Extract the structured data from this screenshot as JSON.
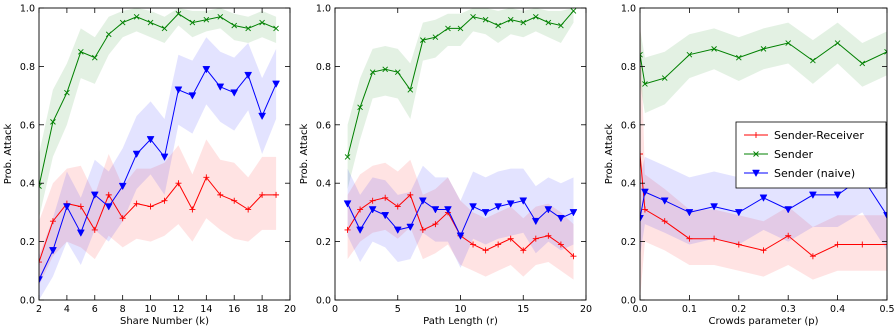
{
  "chart_data": [
    {
      "type": "line",
      "xlabel": "Share Number (k)",
      "ylabel": "Prob. Attack",
      "xlim": [
        2,
        20
      ],
      "ylim": [
        0,
        1
      ],
      "xticks": [
        2,
        4,
        6,
        8,
        10,
        12,
        14,
        16,
        18,
        20
      ],
      "yticks": [
        0.0,
        0.2,
        0.4,
        0.6,
        0.8,
        1.0
      ],
      "xtick_labels": [
        "2",
        "4",
        "6",
        "8",
        "10",
        "12",
        "14",
        "16",
        "18",
        "20"
      ],
      "ytick_labels": [
        "0.0",
        "0.2",
        "0.4",
        "0.6",
        "0.8",
        "1.0"
      ],
      "x": [
        2,
        3,
        4,
        5,
        6,
        7,
        8,
        9,
        10,
        11,
        12,
        13,
        14,
        15,
        16,
        17,
        18,
        19
      ],
      "series": [
        {
          "color": "#ff0000",
          "marker": "plus",
          "values": [
            0.13,
            0.27,
            0.33,
            0.32,
            0.24,
            0.36,
            0.28,
            0.33,
            0.32,
            0.34,
            0.4,
            0.31,
            0.42,
            0.36,
            0.34,
            0.31,
            0.36,
            0.36
          ],
          "lower": [
            0.05,
            0.15,
            0.2,
            0.18,
            0.14,
            0.22,
            0.18,
            0.21,
            0.2,
            0.22,
            0.26,
            0.2,
            0.28,
            0.24,
            0.21,
            0.2,
            0.24,
            0.24
          ],
          "upper": [
            0.27,
            0.4,
            0.45,
            0.46,
            0.36,
            0.5,
            0.39,
            0.45,
            0.45,
            0.47,
            0.53,
            0.43,
            0.55,
            0.48,
            0.47,
            0.42,
            0.49,
            0.49
          ]
        },
        {
          "color": "#008000",
          "marker": "x",
          "values": [
            0.39,
            0.61,
            0.71,
            0.85,
            0.83,
            0.91,
            0.95,
            0.97,
            0.95,
            0.93,
            0.98,
            0.95,
            0.96,
            0.97,
            0.94,
            0.93,
            0.95,
            0.93
          ],
          "lower": [
            0.28,
            0.49,
            0.6,
            0.76,
            0.74,
            0.84,
            0.9,
            0.92,
            0.9,
            0.88,
            0.94,
            0.9,
            0.92,
            0.93,
            0.89,
            0.88,
            0.9,
            0.88
          ],
          "upper": [
            0.5,
            0.72,
            0.81,
            0.93,
            0.9,
            0.97,
            0.99,
            1.0,
            0.99,
            0.97,
            1.0,
            0.99,
            0.99,
            1.0,
            0.98,
            0.97,
            0.99,
            0.97
          ]
        },
        {
          "color": "#0000ff",
          "marker": "triangle-down",
          "values": [
            0.07,
            0.17,
            0.32,
            0.23,
            0.36,
            0.32,
            0.39,
            0.5,
            0.55,
            0.49,
            0.72,
            0.7,
            0.79,
            0.73,
            0.71,
            0.77,
            0.63,
            0.74
          ],
          "lower": [
            0.0,
            0.08,
            0.2,
            0.12,
            0.24,
            0.2,
            0.27,
            0.38,
            0.43,
            0.36,
            0.6,
            0.57,
            0.67,
            0.61,
            0.58,
            0.65,
            0.5,
            0.62
          ],
          "upper": [
            0.15,
            0.28,
            0.44,
            0.35,
            0.48,
            0.44,
            0.52,
            0.63,
            0.68,
            0.62,
            0.84,
            0.82,
            0.9,
            0.85,
            0.83,
            0.88,
            0.76,
            0.86
          ]
        }
      ]
    },
    {
      "type": "line",
      "xlabel": "Path Length (r)",
      "ylabel": "Prob. Attack",
      "xlim": [
        0,
        20
      ],
      "ylim": [
        0,
        1
      ],
      "xticks": [
        0,
        5,
        10,
        15,
        20
      ],
      "yticks": [
        0.0,
        0.2,
        0.4,
        0.6,
        0.8,
        1.0
      ],
      "xtick_labels": [
        "0",
        "5",
        "10",
        "15",
        "20"
      ],
      "ytick_labels": [
        "0.0",
        "0.2",
        "0.4",
        "0.6",
        "0.8",
        "1.0"
      ],
      "x": [
        1,
        2,
        3,
        4,
        5,
        6,
        7,
        8,
        9,
        10,
        11,
        12,
        13,
        14,
        15,
        16,
        17,
        18,
        19
      ],
      "series": [
        {
          "color": "#ff0000",
          "marker": "plus",
          "values": [
            0.24,
            0.31,
            0.34,
            0.35,
            0.32,
            0.36,
            0.24,
            0.26,
            0.3,
            0.22,
            0.19,
            0.17,
            0.19,
            0.21,
            0.17,
            0.21,
            0.22,
            0.19,
            0.15
          ],
          "lower": [
            0.14,
            0.2,
            0.23,
            0.24,
            0.21,
            0.25,
            0.14,
            0.16,
            0.19,
            0.12,
            0.1,
            0.08,
            0.1,
            0.12,
            0.08,
            0.12,
            0.13,
            0.1,
            0.07
          ],
          "upper": [
            0.36,
            0.43,
            0.46,
            0.47,
            0.44,
            0.48,
            0.36,
            0.38,
            0.42,
            0.34,
            0.3,
            0.28,
            0.3,
            0.32,
            0.28,
            0.32,
            0.33,
            0.3,
            0.26
          ]
        },
        {
          "color": "#008000",
          "marker": "x",
          "values": [
            0.49,
            0.66,
            0.78,
            0.79,
            0.78,
            0.72,
            0.89,
            0.9,
            0.93,
            0.93,
            0.97,
            0.96,
            0.94,
            0.96,
            0.95,
            0.97,
            0.95,
            0.94,
            0.99
          ],
          "lower": [
            0.38,
            0.55,
            0.69,
            0.7,
            0.69,
            0.62,
            0.82,
            0.83,
            0.87,
            0.87,
            0.92,
            0.91,
            0.88,
            0.91,
            0.9,
            0.92,
            0.9,
            0.88,
            0.95
          ],
          "upper": [
            0.6,
            0.76,
            0.86,
            0.87,
            0.86,
            0.81,
            0.95,
            0.96,
            0.98,
            0.98,
            1.0,
            1.0,
            0.99,
            1.0,
            0.99,
            1.0,
            0.99,
            0.99,
            1.0
          ]
        },
        {
          "color": "#0000ff",
          "marker": "triangle-down",
          "values": [
            0.33,
            0.24,
            0.31,
            0.29,
            0.24,
            0.25,
            0.34,
            0.31,
            0.31,
            0.22,
            0.32,
            0.3,
            0.32,
            0.33,
            0.34,
            0.27,
            0.31,
            0.28,
            0.3
          ],
          "lower": [
            0.22,
            0.13,
            0.2,
            0.18,
            0.13,
            0.14,
            0.23,
            0.2,
            0.2,
            0.11,
            0.21,
            0.19,
            0.21,
            0.22,
            0.23,
            0.16,
            0.2,
            0.17,
            0.19
          ],
          "upper": [
            0.45,
            0.36,
            0.42,
            0.41,
            0.36,
            0.37,
            0.46,
            0.42,
            0.42,
            0.34,
            0.44,
            0.42,
            0.44,
            0.45,
            0.45,
            0.39,
            0.42,
            0.4,
            0.42
          ]
        }
      ]
    },
    {
      "type": "line",
      "xlabel": "Crowds parameter (p)",
      "ylabel": "Prob. Attack",
      "xlim": [
        0,
        0.5
      ],
      "ylim": [
        0,
        1
      ],
      "xticks": [
        0.0,
        0.1,
        0.2,
        0.3,
        0.4,
        0.5
      ],
      "yticks": [
        0.0,
        0.2,
        0.4,
        0.6,
        0.8,
        1.0
      ],
      "xtick_labels": [
        "0.0",
        "0.1",
        "0.2",
        "0.3",
        "0.4",
        "0.5"
      ],
      "ytick_labels": [
        "0.0",
        "0.2",
        "0.4",
        "0.6",
        "0.8",
        "1.0"
      ],
      "x": [
        0.0,
        0.01,
        0.05,
        0.1,
        0.15,
        0.2,
        0.25,
        0.3,
        0.35,
        0.4,
        0.45,
        0.5
      ],
      "series": [
        {
          "color": "#ff0000",
          "marker": "plus",
          "values": [
            0.5,
            0.31,
            0.27,
            0.21,
            0.21,
            0.19,
            0.17,
            0.22,
            0.15,
            0.19,
            0.19,
            0.19
          ],
          "lower": [
            0.0,
            0.2,
            0.17,
            0.12,
            0.12,
            0.1,
            0.08,
            0.12,
            0.07,
            0.1,
            0.1,
            0.1
          ],
          "upper": [
            1.0,
            0.43,
            0.38,
            0.31,
            0.31,
            0.29,
            0.27,
            0.32,
            0.25,
            0.29,
            0.29,
            0.29
          ]
        },
        {
          "color": "#008000",
          "marker": "x",
          "values": [
            0.84,
            0.74,
            0.76,
            0.84,
            0.86,
            0.83,
            0.86,
            0.88,
            0.82,
            0.88,
            0.81,
            0.85
          ],
          "lower": [
            0.74,
            0.64,
            0.67,
            0.76,
            0.79,
            0.75,
            0.79,
            0.81,
            0.74,
            0.81,
            0.73,
            0.77
          ],
          "upper": [
            0.93,
            0.83,
            0.85,
            0.91,
            0.93,
            0.9,
            0.93,
            0.95,
            0.89,
            0.95,
            0.88,
            0.92
          ]
        },
        {
          "color": "#0000ff",
          "marker": "triangle-down",
          "values": [
            0.28,
            0.37,
            0.34,
            0.3,
            0.32,
            0.3,
            0.35,
            0.31,
            0.36,
            0.36,
            0.42,
            0.29
          ],
          "lower": [
            0.15,
            0.26,
            0.23,
            0.19,
            0.21,
            0.19,
            0.24,
            0.2,
            0.25,
            0.25,
            0.3,
            0.17
          ],
          "upper": [
            0.42,
            0.49,
            0.46,
            0.42,
            0.44,
            0.42,
            0.47,
            0.43,
            0.48,
            0.48,
            0.54,
            0.41
          ]
        }
      ]
    }
  ],
  "legend": {
    "placement": "right",
    "entries": [
      {
        "label": "Sender-Receiver",
        "color": "#ff0000",
        "marker": "plus"
      },
      {
        "label": "Sender",
        "color": "#008000",
        "marker": "x"
      },
      {
        "label": "Sender (naive)",
        "color": "#0000ff",
        "marker": "triangle-down"
      }
    ]
  }
}
